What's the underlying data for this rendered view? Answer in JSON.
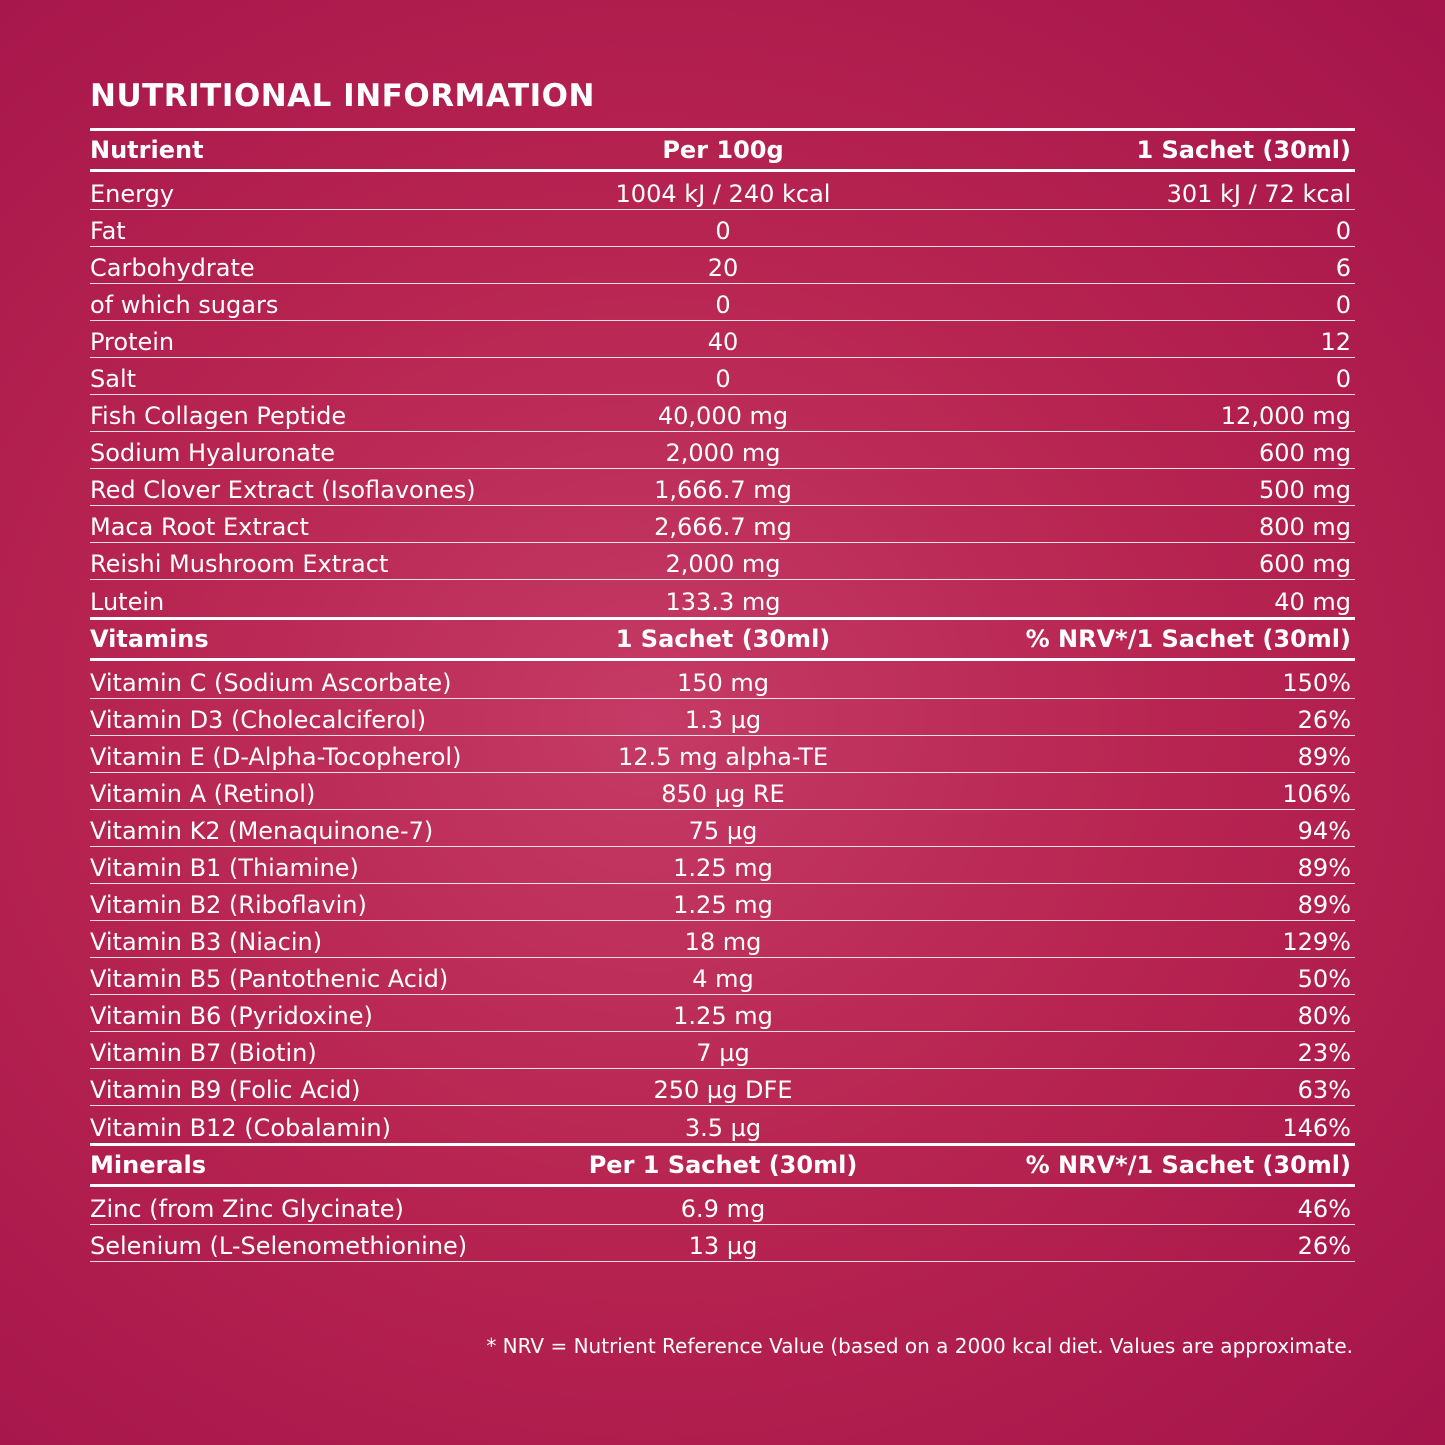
{
  "title": "NUTRITIONAL INFORMATION",
  "colors": {
    "background": "#b82552",
    "text": "#ffffff"
  },
  "sections": [
    {
      "headers": [
        "Nutrient",
        "Per 100g",
        "1 Sachet (30ml)"
      ],
      "rows": [
        [
          "Energy",
          "1004 kJ / 240 kcal",
          "301 kJ / 72 kcal"
        ],
        [
          "Fat",
          "0",
          "0"
        ],
        [
          "Carbohydrate",
          "20",
          "6"
        ],
        [
          "of which sugars",
          "0",
          "0"
        ],
        [
          "Protein",
          "40",
          "12"
        ],
        [
          "Salt",
          "0",
          "0"
        ],
        [
          "Fish Collagen Peptide",
          "40,000 mg",
          "12,000 mg"
        ],
        [
          "Sodium Hyaluronate",
          "2,000 mg",
          "600 mg"
        ],
        [
          "Red Clover Extract (Isoflavones)",
          "1,666.7 mg",
          "500 mg"
        ],
        [
          "Maca Root Extract",
          "2,666.7 mg",
          "800 mg"
        ],
        [
          "Reishi Mushroom Extract",
          "2,000 mg",
          "600 mg"
        ],
        [
          "Lutein",
          "133.3 mg",
          "40 mg"
        ]
      ]
    },
    {
      "headers": [
        "Vitamins",
        "1 Sachet (30ml)",
        "% NRV*/1 Sachet (30ml)"
      ],
      "rows": [
        [
          "Vitamin C (Sodium Ascorbate)",
          "150 mg",
          "150%"
        ],
        [
          "Vitamin D3 (Cholecalciferol)",
          "1.3 µg",
          "26%"
        ],
        [
          "Vitamin E (D-Alpha-Tocopherol)",
          "12.5 mg alpha-TE",
          "89%"
        ],
        [
          "Vitamin A (Retinol)",
          "850 µg RE",
          "106%"
        ],
        [
          "Vitamin K2 (Menaquinone-7)",
          "75 µg",
          "94%"
        ],
        [
          "Vitamin B1 (Thiamine)",
          "1.25 mg",
          "89%"
        ],
        [
          "Vitamin B2 (Riboflavin)",
          "1.25 mg",
          "89%"
        ],
        [
          "Vitamin B3 (Niacin)",
          "18 mg",
          "129%"
        ],
        [
          "Vitamin B5 (Pantothenic Acid)",
          "4 mg",
          "50%"
        ],
        [
          "Vitamin B6 (Pyridoxine)",
          "1.25 mg",
          "80%"
        ],
        [
          "Vitamin B7 (Biotin)",
          "7 µg",
          "23%"
        ],
        [
          "Vitamin B9 (Folic Acid)",
          "250 µg DFE",
          "63%"
        ],
        [
          "Vitamin B12 (Cobalamin)",
          "3.5 µg",
          "146%"
        ]
      ]
    },
    {
      "headers": [
        "Minerals",
        "Per 1 Sachet (30ml)",
        "% NRV*/1 Sachet (30ml)"
      ],
      "rows": [
        [
          "Zinc (from Zinc Glycinate)",
          "6.9 mg",
          "46%"
        ],
        [
          "Selenium (L-Selenomethionine)",
          "13 µg",
          "26%"
        ]
      ]
    }
  ],
  "footnote": "* NRV = Nutrient Reference Value (based on a 2000 kcal diet. Values are approximate."
}
